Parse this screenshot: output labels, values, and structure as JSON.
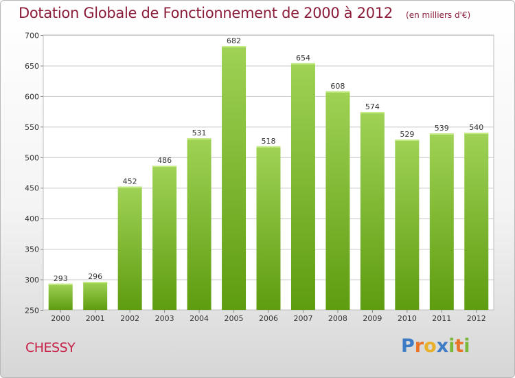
{
  "chart_data": {
    "type": "bar",
    "title": "Dotation Globale de Fonctionnement de 2000 à 2012",
    "unit": "(en milliers d'€)",
    "categories": [
      "2000",
      "2001",
      "2002",
      "2003",
      "2004",
      "2005",
      "2006",
      "2007",
      "2008",
      "2009",
      "2010",
      "2011",
      "2012"
    ],
    "values": [
      293,
      296,
      452,
      486,
      531,
      682,
      518,
      654,
      608,
      574,
      529,
      539,
      540
    ],
    "ylim": [
      250,
      700
    ],
    "yticks": [
      250,
      300,
      350,
      400,
      450,
      500,
      550,
      600,
      650,
      700
    ],
    "grid": true,
    "bar_color_top": "#9fd255",
    "bar_color_bottom": "#5e9c10"
  },
  "commune": "CHESSY",
  "logo": {
    "letters": [
      "P",
      "r",
      "o",
      "x",
      "i",
      "t",
      "i"
    ],
    "colors": [
      "#3d7cc4",
      "#e8742a",
      "#e8b02a",
      "#3d7cc4",
      "#7ab83a",
      "#e8742a",
      "#7ab83a"
    ]
  }
}
